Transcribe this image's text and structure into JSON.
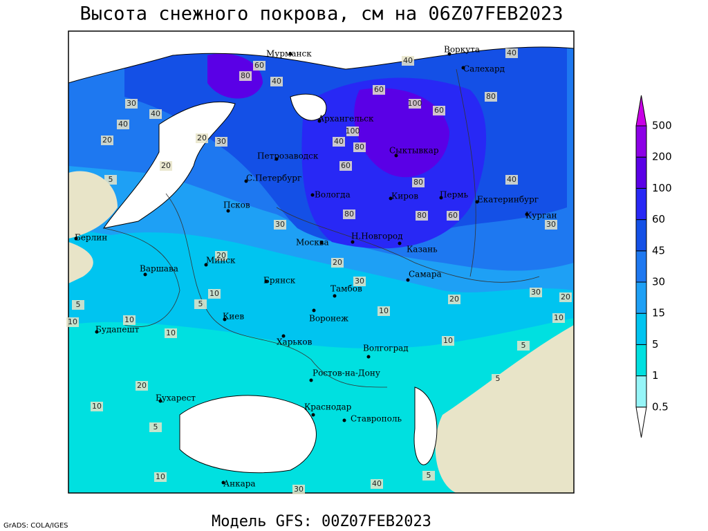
{
  "header": {
    "title": "Высота снежного покрова, см на 06Z07FEB2023"
  },
  "footer": {
    "credit": "GrADS: COLA/IGES",
    "model": "Модель GFS: 00Z07FEB2023"
  },
  "legend": {
    "levels": [
      0.5,
      1,
      5,
      15,
      30,
      45,
      60,
      100,
      200,
      500
    ],
    "colors": [
      "#ffffff",
      "#96f5f8",
      "#00e0e0",
      "#00c4f0",
      "#1ea0f5",
      "#1e78f0",
      "#1450e6",
      "#2828f5",
      "#5a00e6",
      "#8c00e6",
      "#c800e6"
    ]
  },
  "cities": [
    "Мурманск",
    "Воркута",
    "Салехард",
    "Архангельск",
    "Сыктывкар",
    "Петрозаводск",
    "С.Петербург",
    "Вологда",
    "Киров",
    "Пермь",
    "Екатеринбург",
    "Курган",
    "Псков",
    "Москва",
    "Н.Новгород",
    "Казань",
    "Берлин",
    "Варшава",
    "Минск",
    "Брянск",
    "Тамбов",
    "Самара",
    "Киев",
    "Воронеж",
    "Будапешт",
    "Харьков",
    "Волгоград",
    "Ростов-на-Дону",
    "Бухарест",
    "Краснодар",
    "Ставрополь",
    "Анкара"
  ],
  "contour_labels": [
    "30",
    "40",
    "40",
    "20",
    "20",
    "5",
    "20",
    "30",
    "80",
    "60",
    "40",
    "100",
    "100",
    "40",
    "80",
    "60",
    "80",
    "60",
    "80",
    "40",
    "40",
    "60",
    "30",
    "80",
    "80",
    "60",
    "40",
    "30",
    "20",
    "10",
    "5",
    "20",
    "30",
    "10",
    "20",
    "30",
    "20",
    "10",
    "10",
    "10",
    "5",
    "5",
    "20",
    "10",
    "5",
    "10",
    "30",
    "40",
    "5",
    "10",
    "5",
    "10"
  ]
}
